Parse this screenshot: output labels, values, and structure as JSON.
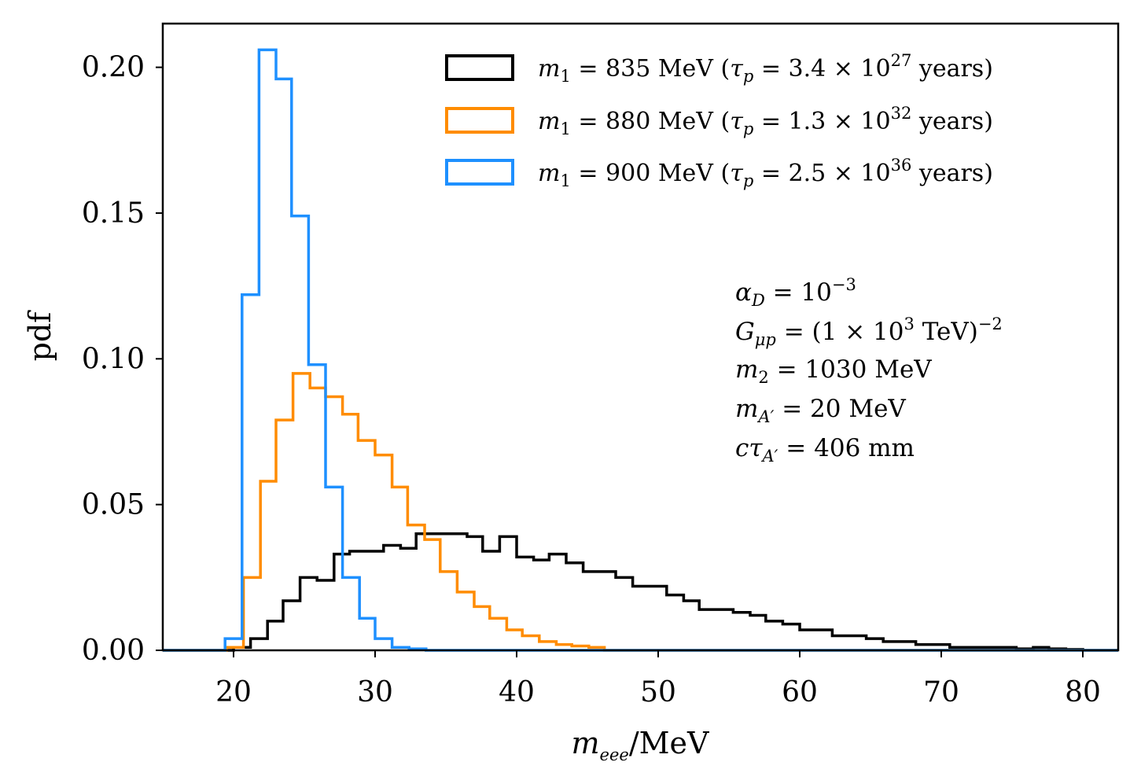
{
  "chart_data": {
    "type": "histogram",
    "xlabel": {
      "main": "m",
      "sub": "eee",
      "unit": "/MeV"
    },
    "ylabel": "pdf",
    "xlim": [
      15,
      82.5
    ],
    "ylim": [
      0,
      0.215
    ],
    "xticks": [
      "20",
      "30",
      "40",
      "50",
      "60",
      "70",
      "80"
    ],
    "xtick_values": [
      20,
      30,
      40,
      50,
      60,
      70,
      80
    ],
    "yticks": [
      "0.00",
      "0.05",
      "0.10",
      "0.15",
      "0.20"
    ],
    "ytick_values": [
      0.0,
      0.05,
      0.1,
      0.15,
      0.2
    ],
    "grid": false,
    "legend_position": "upper right",
    "series": [
      {
        "name": "m₁ = 835 MeV (τₚ = 3.4 × 10²⁷ years)",
        "legend": {
          "mass": "835",
          "tau_mant": "3.4",
          "tau_exp": "27"
        },
        "color": "#000000",
        "edges": [
          20.0,
          21.2,
          22.4,
          23.5,
          24.7,
          25.9,
          27.1,
          28.2,
          29.4,
          30.6,
          31.8,
          32.9,
          34.1,
          35.3,
          36.5,
          37.6,
          38.8,
          40.0,
          41.2,
          42.3,
          43.5,
          44.7,
          45.9,
          47.0,
          48.2,
          49.4,
          50.6,
          51.8,
          52.9,
          54.1,
          55.3,
          56.5,
          57.6,
          58.8,
          60.0,
          61.2,
          62.3,
          63.5,
          64.7,
          65.9,
          67.0,
          68.2,
          69.4,
          70.6,
          71.8,
          72.9,
          74.1,
          75.3,
          76.5,
          77.6,
          78.8,
          80.0
        ],
        "values": [
          0.001,
          0.004,
          0.01,
          0.017,
          0.025,
          0.024,
          0.033,
          0.034,
          0.034,
          0.036,
          0.035,
          0.04,
          0.04,
          0.04,
          0.039,
          0.034,
          0.039,
          0.032,
          0.031,
          0.033,
          0.03,
          0.027,
          0.027,
          0.025,
          0.022,
          0.022,
          0.019,
          0.017,
          0.014,
          0.014,
          0.013,
          0.012,
          0.01,
          0.009,
          0.007,
          0.007,
          0.005,
          0.005,
          0.004,
          0.003,
          0.003,
          0.002,
          0.002,
          0.001,
          0.001,
          0.001,
          0.001,
          0.0005,
          0.001,
          0.0005,
          0.0003
        ]
      },
      {
        "name": "m₁ = 880 MeV (τₚ = 1.3 × 10³² years)",
        "legend": {
          "mass": "880",
          "tau_mant": "1.3",
          "tau_exp": "32"
        },
        "color": "#ff8c00",
        "edges": [
          19.5,
          20.7,
          21.9,
          23.0,
          24.2,
          25.4,
          26.5,
          27.7,
          28.8,
          30.0,
          31.2,
          32.3,
          33.5,
          34.6,
          35.8,
          37.0,
          38.1,
          39.3,
          40.4,
          41.6,
          42.8,
          43.9,
          45.1,
          46.2
        ],
        "values": [
          0.001,
          0.025,
          0.058,
          0.079,
          0.095,
          0.09,
          0.087,
          0.081,
          0.072,
          0.067,
          0.056,
          0.043,
          0.038,
          0.027,
          0.02,
          0.015,
          0.011,
          0.007,
          0.005,
          0.003,
          0.002,
          0.0015,
          0.001
        ]
      },
      {
        "name": "m₁ = 900 MeV (τₚ = 2.5 × 10³⁶ years)",
        "legend": {
          "mass": "900",
          "tau_mant": "2.5",
          "tau_exp": "36"
        },
        "color": "#1e90ff",
        "edges": [
          19.4,
          20.6,
          21.8,
          23.0,
          24.1,
          25.3,
          26.5,
          27.7,
          28.9,
          30.0,
          31.2,
          32.4,
          33.6
        ],
        "values": [
          0.004,
          0.122,
          0.206,
          0.196,
          0.149,
          0.098,
          0.056,
          0.025,
          0.011,
          0.004,
          0.001,
          0.0005
        ]
      }
    ],
    "annotations": {
      "alpha_D": {
        "lhs": "α",
        "sub": "D",
        "rhs": " = 10",
        "sup": "−3"
      },
      "G_mup": {
        "lhs": "G",
        "sub": "μp",
        "rhs": " = (1 × 10",
        "sup1": "3",
        "rhs2": "  TeV)",
        "sup2": "−2"
      },
      "m2": {
        "lhs": "m",
        "sub": "2",
        "rhs": " = 1030 MeV"
      },
      "mA": {
        "lhs": "m",
        "sub": "A′",
        "rhs": " = 20 MeV"
      },
      "ctau": {
        "lhs": "cτ",
        "sub": "A′",
        "rhs": " = 406 mm"
      }
    }
  }
}
